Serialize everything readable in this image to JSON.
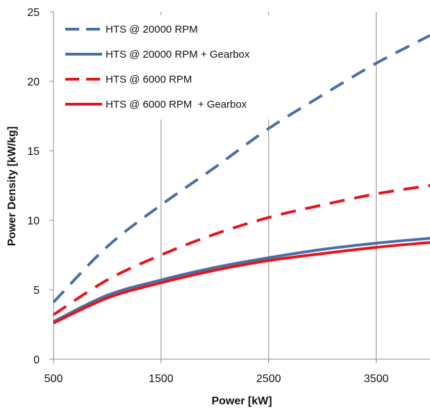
{
  "chart_data": {
    "type": "line",
    "title": "",
    "xlabel": "Power [kW]",
    "ylabel": "Power Density [kW/kg]",
    "xlim": [
      500,
      4000
    ],
    "ylim": [
      0,
      25
    ],
    "xticks": [
      500,
      1500,
      2500,
      3500
    ],
    "yticks": [
      0,
      5,
      10,
      15,
      20,
      25
    ],
    "grid": "vertical",
    "legend_position": "top-left",
    "series": [
      {
        "name": "HTS @ 20000 RPM",
        "color": "#4A6FA5",
        "dash": "dashed",
        "x": [
          500,
          1000,
          1500,
          2000,
          2500,
          3000,
          3500,
          4000
        ],
        "y": [
          4.1,
          8.1,
          11.1,
          13.8,
          16.6,
          19.0,
          21.3,
          23.3
        ]
      },
      {
        "name": "HTS @ 20000 RPM + Gearbox",
        "color": "#4A6FA5",
        "dash": "solid",
        "x": [
          500,
          1000,
          1500,
          2000,
          2500,
          3000,
          3500,
          4000
        ],
        "y": [
          2.7,
          4.6,
          5.7,
          6.6,
          7.3,
          7.9,
          8.35,
          8.7
        ]
      },
      {
        "name": "HTS @ 6000 RPM",
        "color": "#E8141B",
        "dash": "dashed",
        "x": [
          500,
          1000,
          1500,
          2000,
          2500,
          3000,
          3500,
          4000
        ],
        "y": [
          3.2,
          5.7,
          7.5,
          9.0,
          10.2,
          11.1,
          11.9,
          12.5
        ]
      },
      {
        "name": "HTS @ 6000 RPM  + Gearbox",
        "color": "#E8141B",
        "dash": "solid",
        "x": [
          500,
          1000,
          1500,
          2000,
          2500,
          3000,
          3500,
          4000
        ],
        "y": [
          2.6,
          4.4,
          5.5,
          6.4,
          7.1,
          7.6,
          8.05,
          8.4
        ]
      }
    ]
  }
}
